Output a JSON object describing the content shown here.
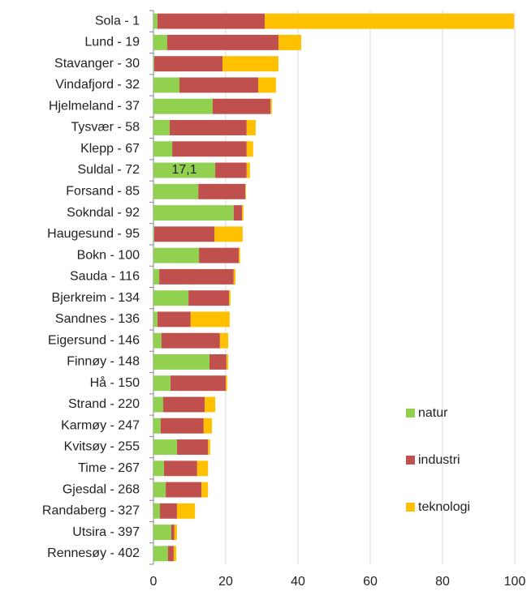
{
  "chart_data": {
    "type": "stacked_barh",
    "categories": [
      "Sola - 1",
      "Lund - 19",
      "Stavanger - 30",
      "Vindafjord - 32",
      "Hjelmeland - 37",
      "Tysvær - 58",
      "Klepp - 67",
      "Suldal - 72",
      "Forsand - 85",
      "Sokndal - 92",
      "Haugesund - 95",
      "Bokn - 100",
      "Sauda - 116",
      "Bjerkreim - 134",
      "Sandnes - 136",
      "Eigersund - 146",
      "Finnøy - 148",
      "Hå - 150",
      "Strand - 220",
      "Karmøy - 247",
      "Kvitsøy - 255",
      "Time - 267",
      "Gjesdal - 268",
      "Randaberg - 327",
      "Utsira - 397",
      "Rennesøy - 402"
    ],
    "series": [
      {
        "name": "natur",
        "color": "#92d050",
        "values": [
          1.1,
          3.8,
          0.2,
          7.2,
          16.4,
          4.5,
          5.2,
          17.1,
          12.4,
          22.2,
          0.2,
          12.6,
          1.6,
          9.7,
          1.1,
          2.2,
          15.5,
          4.7,
          2.7,
          2.0,
          6.5,
          2.9,
          3.4,
          1.8,
          4.9,
          4.0
        ],
        "value_labels": [
          null,
          null,
          null,
          null,
          null,
          null,
          null,
          "17,1",
          null,
          null,
          null,
          null,
          null,
          null,
          null,
          null,
          null,
          null,
          null,
          null,
          null,
          null,
          null,
          null,
          null,
          null
        ]
      },
      {
        "name": "industri",
        "color": "#c0504d",
        "values": [
          29.7,
          30.8,
          18.9,
          21.8,
          16.0,
          21.3,
          20.6,
          8.7,
          13.0,
          2.3,
          16.7,
          11.0,
          20.6,
          11.2,
          9.2,
          16.2,
          4.7,
          15.3,
          11.5,
          11.9,
          8.6,
          9.2,
          9.9,
          4.7,
          0.9,
          1.6
        ]
      },
      {
        "name": "teknologi",
        "color": "#ffc000",
        "values": [
          69.0,
          6.3,
          15.5,
          4.9,
          0.4,
          2.5,
          1.8,
          0.9,
          0.2,
          0.4,
          7.8,
          0.4,
          0.5,
          0.4,
          10.8,
          2.3,
          0.5,
          0.4,
          2.9,
          2.3,
          0.6,
          3.0,
          1.8,
          5.0,
          0.7,
          0.7
        ]
      }
    ],
    "xlim": [
      0,
      100
    ],
    "xticks": [
      0,
      20,
      40,
      60,
      80,
      100
    ],
    "grid": true,
    "legend": "lower right"
  }
}
